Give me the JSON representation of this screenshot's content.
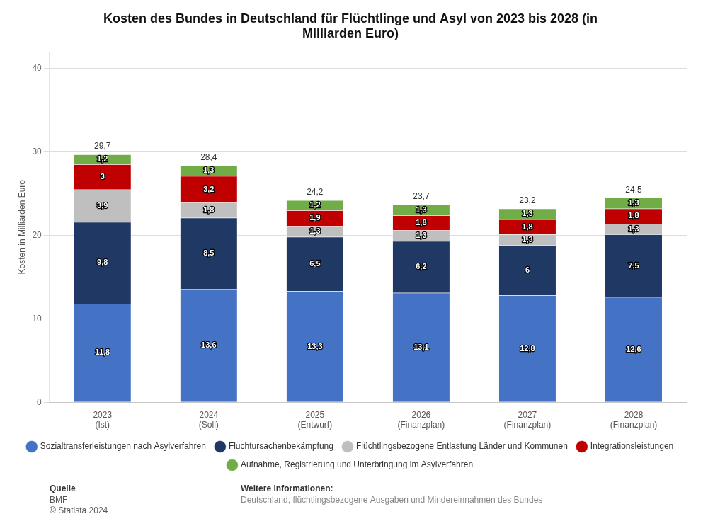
{
  "chart_data": {
    "type": "bar",
    "stacked": true,
    "title": "Kosten des Bundes in Deutschland für Flüchtlinge und Asyl von 2023 bis 2028 (in\nMilliarden Euro)",
    "y_label": "Kosten in Milliarden Euro",
    "categories": [
      "2023\n(Ist)",
      "2024\n(Soll)",
      "2025\n(Entwurf)",
      "2026\n(Finanzplan)",
      "2027\n(Finanzplan)",
      "2028\n(Finanzplan)"
    ],
    "series": [
      {
        "name": "Sozialtransferleistungen nach Asylverfahren",
        "color": "#4472C4",
        "values": [
          11.8,
          13.6,
          13.3,
          13.1,
          12.8,
          12.6
        ],
        "value_labels": [
          "11,8",
          "13,6",
          "13,3",
          "13,1",
          "12,8",
          "12,6"
        ]
      },
      {
        "name": "Fluchtursachenbekämpfung",
        "color": "#1F3864",
        "values": [
          9.8,
          8.5,
          6.5,
          6.2,
          6.0,
          7.5
        ],
        "value_labels": [
          "9,8",
          "8,5",
          "6,5",
          "6,2",
          "6",
          "7,5"
        ]
      },
      {
        "name": "Flüchtlingsbezogene Entlastung Länder und Kommunen",
        "color": "#BFBFBF",
        "values": [
          3.9,
          1.8,
          1.3,
          1.3,
          1.3,
          1.3
        ],
        "value_labels": [
          "3,9",
          "1,8",
          "1,3",
          "1,3",
          "1,3",
          "1,3"
        ]
      },
      {
        "name": "Integrationsleistungen",
        "color": "#C00000",
        "values": [
          3.0,
          3.2,
          1.9,
          1.8,
          1.8,
          1.8
        ],
        "value_labels": [
          "3",
          "3,2",
          "1,9",
          "1,8",
          "1,8",
          "1,8"
        ]
      },
      {
        "name": "Aufnahme, Registrierung und Unterbringung im Asylverfahren",
        "color": "#70AD47",
        "values": [
          1.2,
          1.3,
          1.2,
          1.3,
          1.3,
          1.3
        ],
        "value_labels": [
          "1,2",
          "1,3",
          "1,2",
          "1,3",
          "1,3",
          "1,3"
        ]
      }
    ],
    "totals": [
      29.7,
      28.4,
      24.2,
      23.7,
      23.2,
      24.5
    ],
    "total_labels": [
      "29,7",
      "28,4",
      "24,2",
      "23,7",
      "23,2",
      "24,5"
    ],
    "data_labels": true,
    "ylim": [
      0,
      42
    ],
    "yticks": [
      0,
      10,
      20,
      30,
      40
    ],
    "grid": true,
    "legend": "bottom",
    "annotations": [
      {
        "label": "Quelle",
        "text": "BMF\n© Statista 2024"
      },
      {
        "label": "Weitere Informationen:",
        "text": "Deutschland; flüchtlingsbezogene Ausgaben und Mindereinnahmen des Bundes"
      }
    ]
  }
}
